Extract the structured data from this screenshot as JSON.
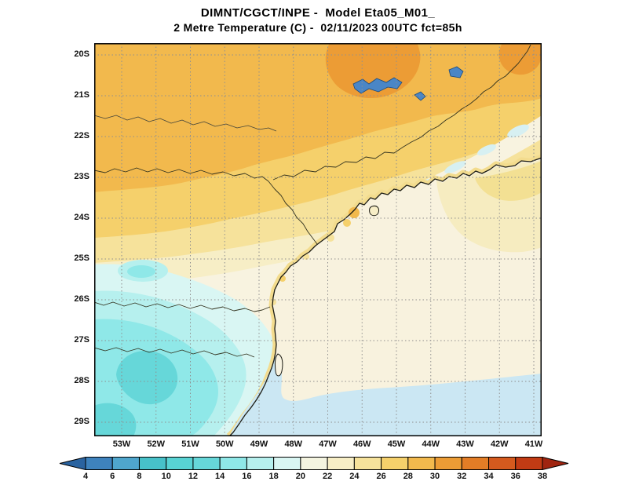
{
  "header": {
    "title_line1": "DIMNT/CGCT/INPE -  Model Eta05_M01_",
    "title_line2": "2 Metre Temperature (C) -  02/11/2023 00UTC fct=85h"
  },
  "map": {
    "lat_labels": [
      "20S",
      "21S",
      "22S",
      "23S",
      "24S",
      "25S",
      "26S",
      "27S",
      "28S",
      "29S"
    ],
    "lon_labels": [
      "53W",
      "52W",
      "51W",
      "50W",
      "49W",
      "48W",
      "47W",
      "46W",
      "45W",
      "44W",
      "43W",
      "42W",
      "41W"
    ]
  },
  "colorbar": {
    "tick_labels": [
      "4",
      "6",
      "8",
      "10",
      "12",
      "14",
      "16",
      "18",
      "20",
      "22",
      "24",
      "26",
      "28",
      "30",
      "32",
      "34",
      "36",
      "38"
    ],
    "arrow_left_color": "#2a63a0",
    "arrow_right_color": "#a02410",
    "cell_colors": [
      "#3e82bd",
      "#4fa6cd",
      "#47c1c9",
      "#58d3d4",
      "#66d7d9",
      "#8fe8e8",
      "#b6f0ee",
      "#d9f6f3",
      "#f4f4e0",
      "#f7eec6",
      "#f6e29b",
      "#f5d06b",
      "#f2b94d",
      "#ec9c35",
      "#e37d26",
      "#d55a1e",
      "#c23b14"
    ]
  },
  "chart_data": {
    "type": "heatmap",
    "title": "2 Metre Temperature (C)",
    "institution": "DIMNT/CGCT/INPE",
    "model": "Eta05_M01_",
    "valid": "02/11/2023 00UTC",
    "forecast": "fct=85h",
    "units": "C",
    "lat_axis_range": [
      "20S",
      "29S"
    ],
    "lon_axis_range": [
      "53W",
      "41W"
    ],
    "scale_values": [
      4,
      6,
      8,
      10,
      12,
      14,
      16,
      18,
      20,
      22,
      24,
      26,
      28,
      30,
      32,
      34,
      36,
      38
    ],
    "field_pattern": {
      "north_interior": "28-32 C (orange)",
      "central_band": "24-28 C (yellow)",
      "east_valley_and_coast": "20-24 C (cream)",
      "southwest_highlands": "12-18 C (cyan)",
      "southern_ocean": "18-20 C (pale blue)"
    }
  }
}
